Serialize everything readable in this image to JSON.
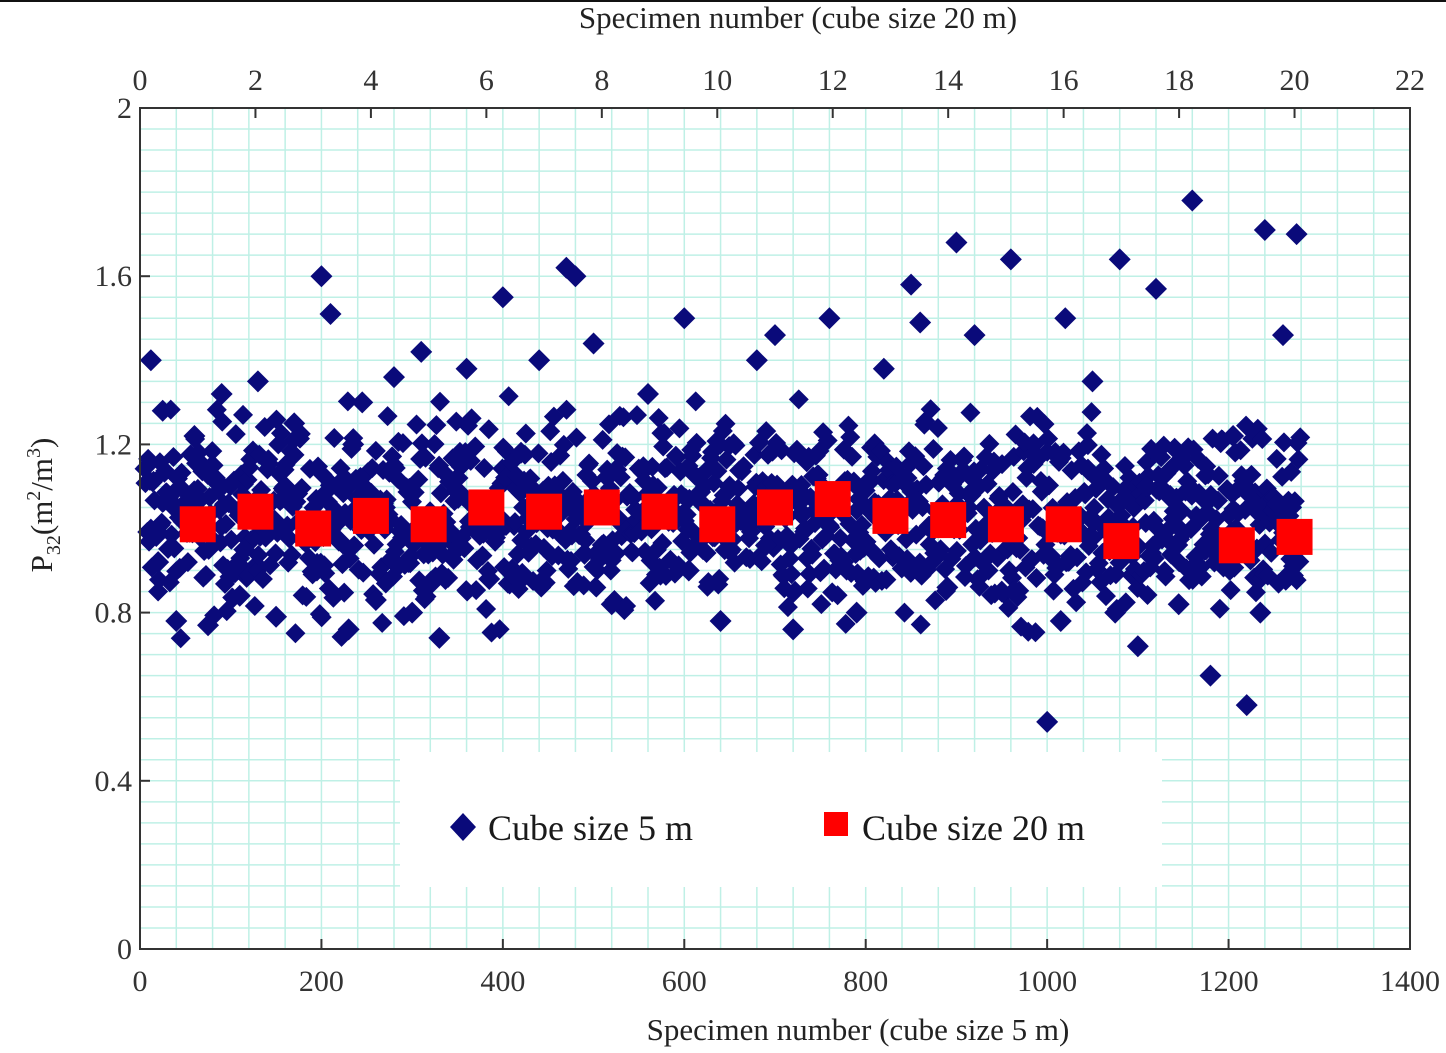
{
  "chart_data": {
    "type": "scatter",
    "xlabel": "Specimen number (cube size 5 m)",
    "x2label": "Specimen number (cube size 20 m)",
    "ylabel_main": "P",
    "ylabel_sub": "32",
    "ylabel_tail": "(m",
    "ylabel_sup1": "2",
    "ylabel_mid": "/m",
    "ylabel_sup2": "3",
    "ylabel_end": ")",
    "xlim": [
      0,
      1400
    ],
    "x2lim": [
      0,
      22
    ],
    "ylim": [
      0,
      2
    ],
    "xticks": [
      "0",
      "200",
      "400",
      "600",
      "800",
      "1000",
      "1200",
      "1400"
    ],
    "x2ticks": [
      "0",
      "2",
      "4",
      "6",
      "8",
      "10",
      "12",
      "14",
      "16",
      "18",
      "20",
      "22"
    ],
    "yticks": [
      "0",
      "0.4",
      "0.8",
      "1.2",
      "1.6",
      "2"
    ],
    "grid": true,
    "legend_position": "bottom-center",
    "colors": {
      "series_5m": "#0a0a7a",
      "series_20m": "#ff0000",
      "grid": "#bff0e6",
      "axis": "#333333"
    },
    "series": [
      {
        "name": "Cube size 5 m",
        "marker": "diamond",
        "axis": "bottom",
        "x": [
          12,
          25,
          40,
          60,
          75,
          90,
          110,
          130,
          150,
          170,
          200,
          210,
          230,
          245,
          260,
          280,
          300,
          310,
          330,
          360,
          400,
          440,
          470,
          480,
          500,
          520,
          560,
          600,
          640,
          680,
          700,
          720,
          760,
          790,
          820,
          850,
          860,
          890,
          900,
          920,
          960,
          1000,
          1020,
          1050,
          1080,
          1100,
          1120,
          1160,
          1180,
          1220,
          1240,
          1260,
          1275,
          20,
          45,
          80,
          115,
          160,
          195,
          235,
          270,
          305,
          350,
          385,
          420,
          455,
          490,
          525,
          565,
          605,
          650,
          690,
          735,
          775,
          810,
          845,
          880,
          915,
          950,
          985,
          1015,
          1045,
          1075,
          1110,
          1145,
          1175,
          1205,
          1235,
          1265
        ],
        "y": [
          1.4,
          1.28,
          0.78,
          1.22,
          0.77,
          1.32,
          0.84,
          1.35,
          0.79,
          1.25,
          1.6,
          1.51,
          0.76,
          1.3,
          0.83,
          1.36,
          0.8,
          1.42,
          0.74,
          1.38,
          1.55,
          1.4,
          1.62,
          1.6,
          1.44,
          0.82,
          1.32,
          1.5,
          0.78,
          1.4,
          1.46,
          0.76,
          1.5,
          0.8,
          1.38,
          1.58,
          1.49,
          0.86,
          1.68,
          1.46,
          1.64,
          0.54,
          1.5,
          1.35,
          1.64,
          0.72,
          1.57,
          1.78,
          0.65,
          0.58,
          1.71,
          1.46,
          1.7,
          0.92,
          1.05,
          1.15,
          0.95,
          1.1,
          0.9,
          1.2,
          1.05,
          0.98,
          1.12,
          0.88,
          1.18,
          1.0,
          0.94,
          1.14,
          1.02,
          0.9,
          1.1,
          0.96,
          1.16,
          0.92,
          1.06,
          1.12,
          0.94,
          1.08,
          0.85,
          1.2,
          0.78,
          1.14,
          0.8,
          1.1,
          0.82,
          0.95,
          1.22,
          0.8,
          1.0
        ],
        "note_density": "dense cloud of ~1280 points between 0.7 and 1.35"
      },
      {
        "name": "Cube size 20 m",
        "marker": "square",
        "axis": "top",
        "x": [
          1,
          2,
          3,
          4,
          5,
          6,
          7,
          8,
          9,
          10,
          11,
          12,
          13,
          14,
          15,
          16,
          17,
          19,
          20
        ],
        "y": [
          1.01,
          1.04,
          1.0,
          1.03,
          1.01,
          1.05,
          1.04,
          1.05,
          1.04,
          1.01,
          1.05,
          1.07,
          1.03,
          1.02,
          1.01,
          1.01,
          0.97,
          0.96,
          0.98
        ]
      }
    ]
  }
}
